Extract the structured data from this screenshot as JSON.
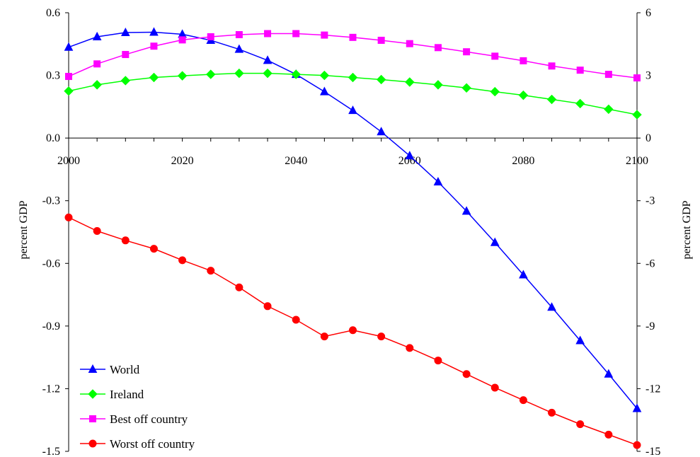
{
  "chart_data": {
    "type": "line",
    "title": "",
    "x_ticks": [
      "2000",
      "2020",
      "2040",
      "2060",
      "2080",
      "2100"
    ],
    "xlim": [
      2000,
      2100
    ],
    "y_left": {
      "label": "percent GDP",
      "ylim": [
        -1.5,
        0.6
      ],
      "ticks": [
        "0.6",
        "0.3",
        "0.0",
        "-0.3",
        "-0.6",
        "-0.9",
        "-1.2",
        "-1.5"
      ]
    },
    "y_right": {
      "label": "percent GDP",
      "ylim": [
        -15,
        6
      ],
      "ticks": [
        "6",
        "3",
        "0",
        "-3",
        "-6",
        "-9",
        "-12",
        "-15"
      ]
    },
    "grid": false,
    "legend_position": "bottom-left",
    "x": [
      2000,
      2005,
      2010,
      2015,
      2020,
      2025,
      2030,
      2035,
      2040,
      2045,
      2050,
      2055,
      2060,
      2065,
      2070,
      2075,
      2080,
      2085,
      2090,
      2095,
      2100
    ],
    "series": [
      {
        "name": "World",
        "axis": "left",
        "color": "#0000ff",
        "marker": "triangle",
        "values": [
          0.435,
          0.485,
          0.505,
          0.507,
          0.497,
          0.468,
          0.425,
          0.372,
          0.305,
          0.222,
          0.132,
          0.03,
          -0.085,
          -0.21,
          -0.35,
          -0.5,
          -0.655,
          -0.81,
          -0.97,
          -1.13,
          -1.295
        ]
      },
      {
        "name": "Ireland",
        "axis": "right",
        "color": "#00ff00",
        "marker": "diamond",
        "values": [
          2.25,
          2.55,
          2.75,
          2.9,
          2.98,
          3.05,
          3.1,
          3.1,
          3.05,
          3.0,
          2.9,
          2.8,
          2.68,
          2.55,
          2.4,
          2.22,
          2.05,
          1.85,
          1.65,
          1.38,
          1.12
        ]
      },
      {
        "name": "Best off country",
        "axis": "right",
        "color": "#ff00ff",
        "marker": "square",
        "values": [
          2.95,
          3.55,
          4.0,
          4.4,
          4.7,
          4.85,
          4.95,
          5.0,
          5.0,
          4.93,
          4.82,
          4.68,
          4.52,
          4.33,
          4.13,
          3.92,
          3.7,
          3.45,
          3.25,
          3.05,
          2.88
        ]
      },
      {
        "name": "Worst off country",
        "axis": "right",
        "color": "#ff0000",
        "marker": "circle",
        "values": [
          -3.8,
          -4.45,
          -4.9,
          -5.3,
          -5.85,
          -6.35,
          -7.15,
          -8.05,
          -8.7,
          -9.5,
          -9.2,
          -9.5,
          -10.05,
          -10.65,
          -11.3,
          -11.95,
          -12.55,
          -13.15,
          -13.7,
          -14.2,
          -14.7
        ]
      }
    ]
  }
}
